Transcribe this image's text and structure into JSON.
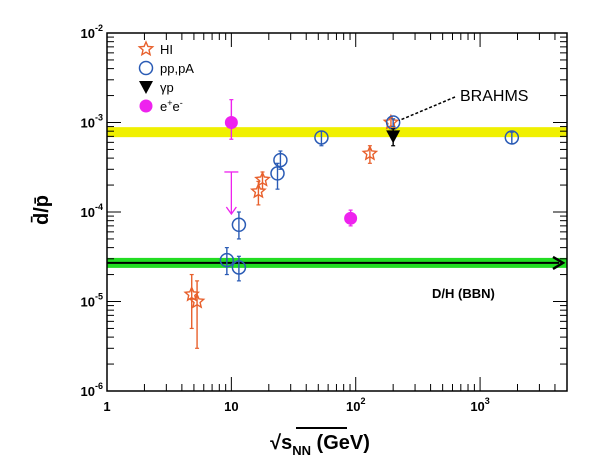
{
  "chart_data": {
    "type": "scatter",
    "x_scale": "log",
    "y_scale": "log",
    "xlim": [
      1,
      5000
    ],
    "ylim": [
      1e-06,
      0.01
    ],
    "xlabel": "√s_NN (GeV)",
    "xlabel_parts": {
      "prefix": "√",
      "sym": "s",
      "sub": "NN",
      "unit": " (GeV)"
    },
    "ylabel": "d̄/p̄",
    "xticks": [
      {
        "value": 1,
        "base": "1",
        "exp": ""
      },
      {
        "value": 10,
        "base": "10",
        "exp": ""
      },
      {
        "value": 100,
        "base": "10",
        "exp": "2"
      },
      {
        "value": 1000,
        "base": "10",
        "exp": "3"
      }
    ],
    "yticks": [
      {
        "value": 1e-06,
        "base": "10",
        "exp": "-6"
      },
      {
        "value": 1e-05,
        "base": "10",
        "exp": "-5"
      },
      {
        "value": 0.0001,
        "base": "10",
        "exp": "-4"
      },
      {
        "value": 0.001,
        "base": "10",
        "exp": "-3"
      },
      {
        "value": 0.01,
        "base": "10",
        "exp": "-2"
      }
    ],
    "legend_position": "top-left",
    "legend": [
      {
        "label": "HI",
        "marker": "star",
        "color": "#e8602c"
      },
      {
        "label": "pp,pA",
        "marker": "open-circle",
        "color": "#2a5bb5"
      },
      {
        "label": "γp",
        "marker": "down-triangle",
        "color": "#000000"
      },
      {
        "label": "e",
        "sup": "+",
        "label2": "e",
        "sup2": "-",
        "marker": "filled-circle",
        "color": "#ee22ee"
      }
    ],
    "series": [
      {
        "name": "HI",
        "marker": "star",
        "color": "#e8602c",
        "points": [
          {
            "x": 4.8,
            "y": 1.2e-05,
            "ylo": 5e-06,
            "yhi": 2e-05
          },
          {
            "x": 5.3,
            "y": 1e-05,
            "ylo": 3e-06,
            "yhi": 1.7e-05
          },
          {
            "x": 16.5,
            "y": 0.00017,
            "ylo": 0.00012,
            "yhi": 0.00022
          },
          {
            "x": 17.8,
            "y": 0.00023,
            "ylo": 0.00018,
            "yhi": 0.00028
          },
          {
            "x": 130,
            "y": 0.00045,
            "ylo": 0.00035,
            "yhi": 0.00055
          },
          {
            "x": 192,
            "y": 0.001,
            "ylo": 0.00085,
            "yhi": 0.00115
          }
        ]
      },
      {
        "name": "pp,pA",
        "marker": "open-circle",
        "color": "#2a5bb5",
        "points": [
          {
            "x": 9.2,
            "y": 2.9e-05,
            "ylo": 2e-05,
            "yhi": 4e-05
          },
          {
            "x": 11.5,
            "y": 7.2e-05,
            "ylo": 5e-05,
            "yhi": 0.0001
          },
          {
            "x": 11.5,
            "y": 2.4e-05,
            "ylo": 1.7e-05,
            "yhi": 3.2e-05
          },
          {
            "x": 23.5,
            "y": 0.00027,
            "ylo": 0.00018,
            "yhi": 0.00035
          },
          {
            "x": 24.8,
            "y": 0.00038,
            "ylo": 0.0003,
            "yhi": 0.00048
          },
          {
            "x": 53,
            "y": 0.00068,
            "ylo": 0.00055,
            "yhi": 0.0008
          },
          {
            "x": 200,
            "y": 0.001,
            "ylo": 0.0009,
            "yhi": 0.0011
          },
          {
            "x": 1800,
            "y": 0.00068,
            "ylo": 0.00058,
            "yhi": 0.00078
          }
        ]
      },
      {
        "name": "γp",
        "marker": "down-triangle",
        "color": "#000000",
        "points": [
          {
            "x": 200,
            "y": 0.0007,
            "ylo": 0.00055,
            "yhi": 0.00085
          }
        ]
      },
      {
        "name": "e+e-",
        "marker": "filled-circle",
        "color": "#ee22ee",
        "points": [
          {
            "x": 10,
            "y": 0.001,
            "ylo": 0.00065,
            "yhi": 0.0018
          },
          {
            "x": 91,
            "y": 8.5e-05,
            "ylo": 7e-05,
            "yhi": 0.000105
          }
        ]
      }
    ],
    "upper_limit_arrow": {
      "x": 10,
      "y_from": 0.00028,
      "y_to": 9.5e-05,
      "color": "#ee22ee"
    },
    "yellow_band": {
      "y": 0.00078,
      "color": "#f0f000"
    },
    "green_band": {
      "y": 2.7e-05,
      "color": "#22dd22"
    },
    "bbn_label": "D/H (BBN)",
    "brahms_label": "BRAHMS"
  }
}
